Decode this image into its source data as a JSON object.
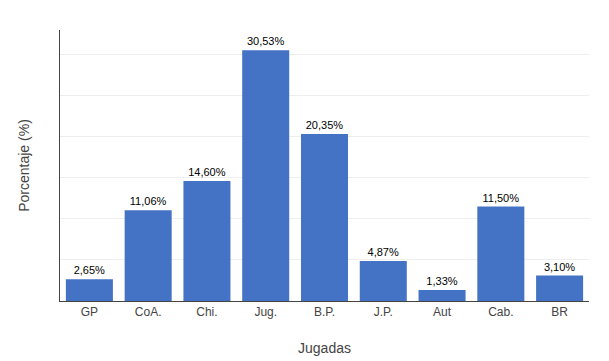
{
  "chart_data": {
    "type": "bar",
    "categories": [
      "GP",
      "CoA.",
      "Chi.",
      "Jug.",
      "B.P.",
      "J.P.",
      "Aut",
      "Cab.",
      "BR"
    ],
    "values": [
      2.65,
      11.06,
      14.6,
      30.53,
      20.35,
      4.87,
      1.33,
      11.5,
      3.1
    ],
    "value_labels": [
      "2,65%",
      "11,06%",
      "14,60%",
      "30,53%",
      "20,35%",
      "4,87%",
      "1,33%",
      "11,50%",
      "3,10%"
    ],
    "data_labels": true,
    "color": "#4472C4",
    "xlabel": "Jugadas",
    "ylabel": "Porcentaje (%)",
    "ylim": [
      0,
      33
    ],
    "yticks": [
      0,
      5,
      10,
      15,
      20,
      25,
      30
    ],
    "tick_labels": "x",
    "grid": true
  }
}
